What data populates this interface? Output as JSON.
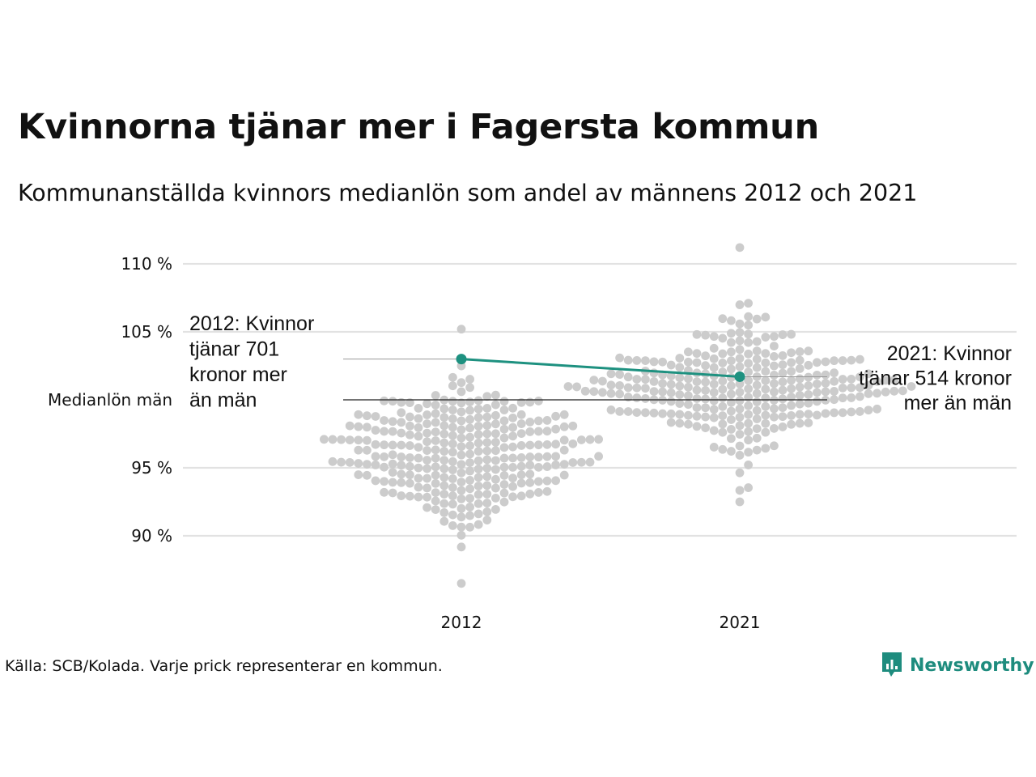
{
  "title": "Kvinnorna tjänar mer i Fagersta kommun",
  "subtitle": "Kommunanställda kvinnors medianlön som andel av männens 2012 och 2021",
  "source": "Källa: SCB/Kolada. Varje prick representerar en kommun.",
  "brand": {
    "name": "Newsworthy",
    "icon": "newsworthy-logo-icon",
    "color": "#1e8c7e"
  },
  "chart_data": {
    "type": "scatter",
    "subtype": "beeswarm",
    "categories": [
      "2012",
      "2021"
    ],
    "ylim": [
      86,
      111
    ],
    "yticks": [
      {
        "value": 90,
        "label": "90 %"
      },
      {
        "value": 95,
        "label": "95 %"
      },
      {
        "value": 100,
        "label": "Medianlön män"
      },
      {
        "value": 105,
        "label": "105 %"
      },
      {
        "value": 110,
        "label": "110 %"
      }
    ],
    "grid": true,
    "reference_line": {
      "value": 100,
      "label": "Medianlön män"
    },
    "dot_color": "#cccccc",
    "highlight_color": "#1e9180",
    "highlight": {
      "name": "Fagersta",
      "points": [
        {
          "x": "2012",
          "y": 103.0
        },
        {
          "x": "2021",
          "y": 101.7
        }
      ]
    },
    "annotations": [
      {
        "x": "2012",
        "lines": [
          "2012: Kvinnor",
          "tjänar 701",
          "kronor mer",
          "än män"
        ]
      },
      {
        "x": "2021",
        "lines": [
          "2021: Kvinnor",
          "tjänar 514 kronor",
          "mer än män"
        ]
      }
    ],
    "distribution": {
      "2012": {
        "count": 290,
        "min": 86.5,
        "max": 105.2,
        "center": 96.0,
        "spread": 2.6
      },
      "2021": {
        "count": 290,
        "min": 92.5,
        "max": 111.2,
        "center": 101.0,
        "spread": 2.2
      }
    }
  }
}
